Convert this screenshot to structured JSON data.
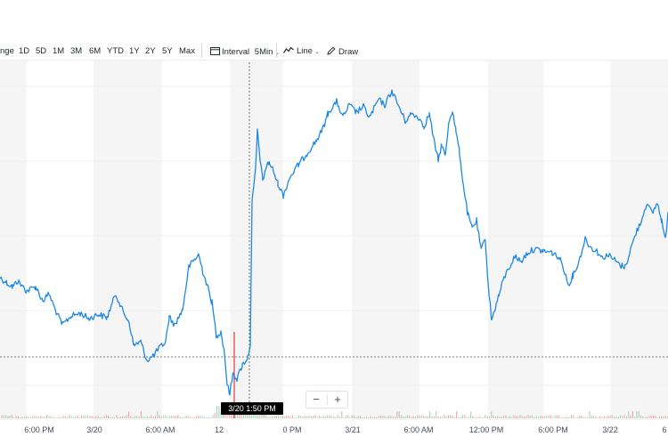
{
  "toolbar": {
    "range_partial": "nge",
    "ranges": [
      "1D",
      "5D",
      "1M",
      "3M",
      "6M",
      "YTD",
      "1Y",
      "2Y",
      "5Y",
      "Max"
    ],
    "interval_label": "Interval",
    "interval_value": "5Min",
    "chart_type": "Line",
    "draw_label": "Draw"
  },
  "x_axis": {
    "labels": [
      "6:00 PM",
      "3/20",
      "6:00 AM",
      "12",
      "3/20 1:50 PM",
      "0 PM",
      "3/21",
      "6:00 AM",
      "12:00 PM",
      "6:00 PM",
      "3/22",
      "6"
    ]
  },
  "crosshair": {
    "label": "3/20 1:50 PM"
  },
  "zoom": {
    "minus": "−",
    "plus": "+"
  },
  "colors": {
    "line": "#1e88e5",
    "grid_band": "#f5f5f5",
    "volume_up": "#9ed7b4",
    "volume_down": "#f2a6a6",
    "crosshair_bar": "#e53935"
  },
  "chart_data": {
    "type": "line",
    "title": "",
    "xlabel": "",
    "ylabel": "",
    "x": [
      "3/19 6:00 PM",
      "3/20 12:00 AM",
      "3/20 6:00 AM",
      "3/20 12:00 PM",
      "3/20 1:50 PM",
      "3/20 6:00 PM",
      "3/21 12:00 AM",
      "3/21 6:00 AM",
      "3/21 12:00 PM",
      "3/21 6:00 PM",
      "3/22 12:00 AM",
      "3/22 6:00 AM"
    ],
    "series": [
      {
        "values": [
          0.5,
          0.45,
          0.3,
          0.02,
          0.9,
          0.92,
          0.97,
          0.99,
          0.4,
          0.46,
          0.44,
          0.66
        ]
      }
    ],
    "grid": true
  }
}
